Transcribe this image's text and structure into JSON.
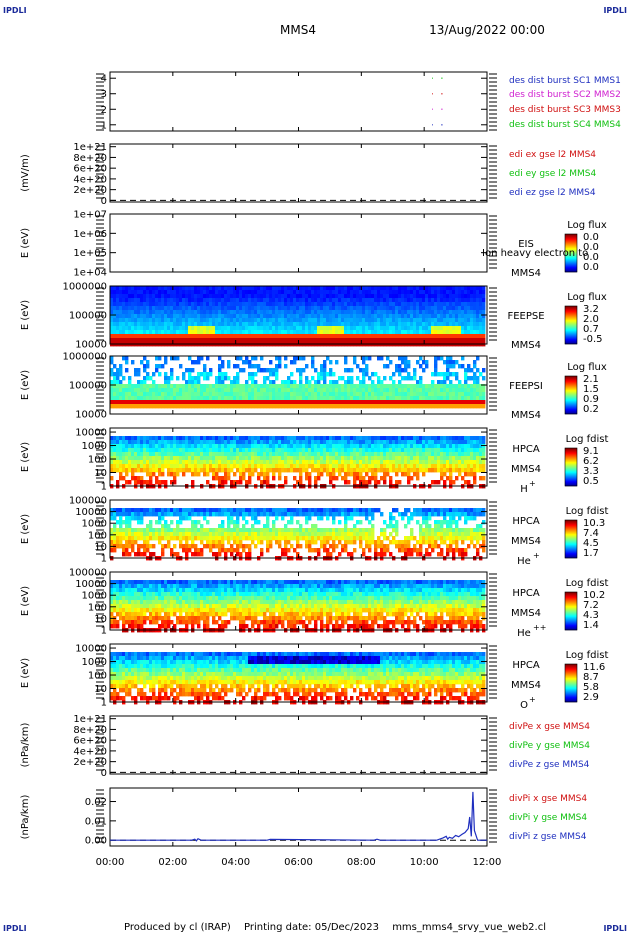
{
  "header": {
    "spacecraft": "MMS4",
    "date": "13/Aug/2022 00:00",
    "corner_left": "IPDLI",
    "corner_right": "IPDLI"
  },
  "footer": {
    "produced": "Produced by cl (IRAP)",
    "printing": "Printing date: 05/Dec/2023",
    "script": "mms_mms4_srvy_vue_web2.cl",
    "corner_left": "IPDLI",
    "corner_right": "IPDLI"
  },
  "overlap_text": "Ion heavy electron to",
  "colors": {
    "blue": "#1f2fbf",
    "magenta": "#d020d0",
    "red": "#d01010",
    "green": "#10c010"
  },
  "chart_data": [
    {
      "type": "line",
      "id": "burst",
      "x_range": [
        0,
        12
      ],
      "ylim": [
        0.6,
        4.4
      ],
      "yticks": [
        "4",
        "3",
        "2",
        "1"
      ],
      "ytick_values": [
        4,
        3,
        2,
        1
      ],
      "ylabel": "",
      "series": [
        {
          "name": "des dist burst SC1 MMS1",
          "color": "#1f2fbf",
          "level": 1,
          "segments": [
            [
              10.25,
              10.27
            ],
            [
              10.55,
              10.58
            ]
          ]
        },
        {
          "name": "des dist burst SC2 MMS2",
          "color": "#d020d0",
          "level": 2,
          "segments": [
            [
              10.25,
              10.27
            ],
            [
              10.55,
              10.58
            ]
          ]
        },
        {
          "name": "des dist burst SC3 MMS3",
          "color": "#d01010",
          "level": 3,
          "segments": [
            [
              10.25,
              10.27
            ],
            [
              10.55,
              10.58
            ]
          ]
        },
        {
          "name": "des dist burst SC4 MMS4",
          "color": "#10c010",
          "level": 4,
          "segments": [
            [
              10.25,
              10.27
            ],
            [
              10.55,
              10.58
            ]
          ]
        }
      ]
    },
    {
      "type": "line",
      "id": "edi",
      "x_range": [
        0,
        12
      ],
      "ylim": [
        -3e+19,
        1.05e+21
      ],
      "yticks": [
        "1e+21",
        "8e+20",
        "6e+20",
        "4e+20",
        "2e+20",
        "0"
      ],
      "ytick_values": [
        1e+21,
        8e+20,
        6e+20,
        4e+20,
        2e+20,
        0
      ],
      "ylabel": "(mV/m)",
      "zero_line": true,
      "series": [
        {
          "name": "edi ex gse l2 MMS4",
          "color": "#d01010"
        },
        {
          "name": "edi ey gse l2 MMS4",
          "color": "#10c010"
        },
        {
          "name": "edi ez gse l2 MMS4",
          "color": "#1f2fbf"
        }
      ]
    },
    {
      "type": "heatmap",
      "id": "eis",
      "x_range": [
        0,
        12
      ],
      "ylog": [
        4,
        7
      ],
      "yticks": [
        "1e+07",
        "1e+06",
        "1e+05",
        "1e+04"
      ],
      "ytick_values": [
        7,
        6,
        5,
        4
      ],
      "ylabel": "E (eV)",
      "instrument": [
        "EIS",
        "MMS4"
      ],
      "colorbar": {
        "title": "Log flux",
        "labels": [
          "0.0",
          "0.0",
          "0.0",
          "0.0"
        ]
      }
    },
    {
      "type": "heatmap",
      "id": "feepse",
      "x_range": [
        0,
        12
      ],
      "ylog": [
        4,
        6
      ],
      "yticks": [
        "1000000",
        "100000",
        "10000"
      ],
      "ytick_values": [
        6,
        5,
        4
      ],
      "ylabel": "E (eV)",
      "instrument": [
        "FEEPSE",
        "MMS4"
      ],
      "colorbar": {
        "title": "Log flux",
        "labels": [
          "3.2",
          "2.0",
          "0.7",
          "-0.5"
        ]
      }
    },
    {
      "type": "heatmap",
      "id": "feepsi",
      "x_range": [
        0,
        12
      ],
      "ylog": [
        4,
        6
      ],
      "yticks": [
        "1000000",
        "100000",
        "10000"
      ],
      "ytick_values": [
        6,
        5,
        4
      ],
      "ylabel": "E (eV)",
      "instrument": [
        "FEEPSI",
        "MMS4"
      ],
      "colorbar": {
        "title": "Log flux",
        "labels": [
          "2.1",
          "1.5",
          "0.9",
          "0.2"
        ]
      }
    },
    {
      "type": "heatmap",
      "id": "hpca_h",
      "x_range": [
        0,
        12
      ],
      "ylog": [
        0,
        4.3
      ],
      "yticks": [
        "10000",
        "1000",
        "100",
        "10",
        "1"
      ],
      "ytick_values": [
        4,
        3,
        2,
        1,
        0
      ],
      "ylabel": "E (eV)",
      "instrument": [
        "HPCA",
        "MMS4"
      ],
      "species": "H",
      "species_sup": "+",
      "colorbar": {
        "title": "Log fdist",
        "labels": [
          "9.1",
          "6.2",
          "3.3",
          "0.5"
        ]
      }
    },
    {
      "type": "heatmap",
      "id": "hpca_he",
      "x_range": [
        0,
        12
      ],
      "ylog": [
        0,
        5
      ],
      "yticks": [
        "100000",
        "10000",
        "1000",
        "100",
        "10",
        "1"
      ],
      "ytick_values": [
        5,
        4,
        3,
        2,
        1,
        0
      ],
      "ylabel": "E (eV)",
      "instrument": [
        "HPCA",
        "MMS4"
      ],
      "species": "He",
      "species_sup": "+",
      "colorbar": {
        "title": "Log fdist",
        "labels": [
          "10.3",
          "7.4",
          "4.5",
          "1.7"
        ]
      }
    },
    {
      "type": "heatmap",
      "id": "hpca_hepp",
      "x_range": [
        0,
        12
      ],
      "ylog": [
        0,
        5
      ],
      "yticks": [
        "100000",
        "10000",
        "1000",
        "100",
        "10",
        "1"
      ],
      "ytick_values": [
        5,
        4,
        3,
        2,
        1,
        0
      ],
      "ylabel": "E (eV)",
      "instrument": [
        "HPCA",
        "MMS4"
      ],
      "species": "He",
      "species_sup": "++",
      "colorbar": {
        "title": "Log fdist",
        "labels": [
          "10.2",
          "7.2",
          "4.3",
          "1.4"
        ]
      }
    },
    {
      "type": "heatmap",
      "id": "hpca_o",
      "x_range": [
        0,
        12
      ],
      "ylog": [
        0,
        4.3
      ],
      "yticks": [
        "10000",
        "1000",
        "100",
        "10",
        "1"
      ],
      "ytick_values": [
        4,
        3,
        2,
        1,
        0
      ],
      "ylabel": "E (eV)",
      "instrument": [
        "HPCA",
        "MMS4"
      ],
      "species": "O",
      "species_sup": "+",
      "colorbar": {
        "title": "Log fdist",
        "labels": [
          "11.6",
          "8.7",
          "5.8",
          "2.9"
        ]
      }
    },
    {
      "type": "line",
      "id": "divpe",
      "x_range": [
        0,
        12
      ],
      "ylim": [
        -3e+19,
        1.05e+21
      ],
      "yticks": [
        "1e+21",
        "8e+20",
        "6e+20",
        "4e+20",
        "2e+20",
        "0"
      ],
      "ytick_values": [
        1e+21,
        8e+20,
        6e+20,
        4e+20,
        2e+20,
        0
      ],
      "ylabel": "(nPa/km)",
      "zero_line": true,
      "series": [
        {
          "name": "divPe x gse MMS4",
          "color": "#d01010"
        },
        {
          "name": "divPe y gse MMS4",
          "color": "#10c010"
        },
        {
          "name": "divPe z gse MMS4",
          "color": "#1f2fbf"
        }
      ]
    },
    {
      "type": "line",
      "id": "divpi",
      "x_range": [
        0,
        12
      ],
      "ylim": [
        -0.003,
        0.027
      ],
      "yticks": [
        "0.02",
        "0.01",
        "0.00"
      ],
      "ytick_values": [
        0.02,
        0.01,
        0.0
      ],
      "ylabel": "(nPa/km)",
      "zero_line": true,
      "series": [
        {
          "name": "divPi x gse MMS4",
          "color": "#d01010"
        },
        {
          "name": "divPi y gse MMS4",
          "color": "#10c010"
        },
        {
          "name": "divPi z gse MMS4",
          "color": "#1f2fbf",
          "x": [
            0,
            2.6,
            2.7,
            2.75,
            2.8,
            2.9,
            3.0,
            5.0,
            5.1,
            8.4,
            8.5,
            8.6,
            10.4,
            10.6,
            10.7,
            10.75,
            10.8,
            10.9,
            11.0,
            11.1,
            11.2,
            11.3,
            11.4,
            11.45,
            11.5,
            11.55,
            11.6,
            11.7,
            11.8,
            12.0
          ],
          "y": [
            0.0,
            0.0,
            0.0005,
            -0.0003,
            0.0008,
            0.0,
            0.0,
            0.0,
            0.0004,
            0.0,
            0.0005,
            0.0,
            0.0,
            0.0012,
            0.002,
            0.0005,
            0.0015,
            0.001,
            0.0025,
            0.0018,
            0.003,
            0.004,
            0.006,
            0.012,
            0.002,
            0.025,
            0.005,
            0.0,
            0.0,
            0.0
          ]
        }
      ]
    }
  ],
  "xaxis": {
    "tick_labels": [
      "00:00",
      "02:00",
      "04:00",
      "06:00",
      "08:00",
      "10:00",
      "12:00"
    ],
    "tick_values": [
      0,
      2,
      4,
      6,
      8,
      10,
      12
    ]
  }
}
